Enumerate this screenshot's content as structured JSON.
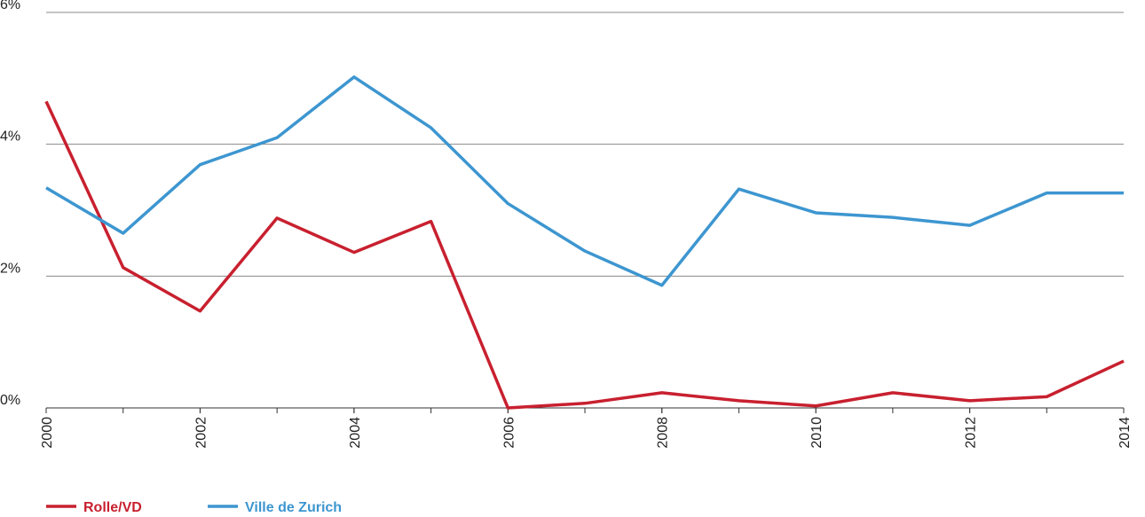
{
  "chart_data": {
    "type": "line",
    "x": [
      2000,
      2001,
      2002,
      2003,
      2004,
      2005,
      2006,
      2007,
      2008,
      2009,
      2010,
      2011,
      2012,
      2013,
      2014
    ],
    "series": [
      {
        "name": "Rolle/VD",
        "color": "#c8202f",
        "values": [
          4.65,
          2.13,
          1.47,
          2.88,
          2.36,
          2.83,
          0,
          0.07,
          0.23,
          0.11,
          0.03,
          0.23,
          0.11,
          0.17,
          0.71
        ]
      },
      {
        "name": "Ville de Zurich",
        "color": "#3d96d0",
        "values": [
          3.34,
          2.65,
          3.69,
          4.1,
          5.02,
          4.25,
          3.1,
          2.38,
          1.86,
          3.32,
          2.96,
          2.89,
          2.77,
          3.26,
          3.26
        ]
      }
    ],
    "xlim": [
      2000,
      2014
    ],
    "xticks": [
      2000,
      2002,
      2004,
      2006,
      2008,
      2010,
      2012,
      2014
    ],
    "ylim": [
      0,
      6
    ],
    "yticks": [
      {
        "value": 0,
        "label": "0%"
      },
      {
        "value": 2,
        "label": "2%"
      },
      {
        "value": 4,
        "label": "4%"
      },
      {
        "value": 6,
        "label": "6%"
      }
    ],
    "grid": true,
    "legend": "bottom-left"
  }
}
